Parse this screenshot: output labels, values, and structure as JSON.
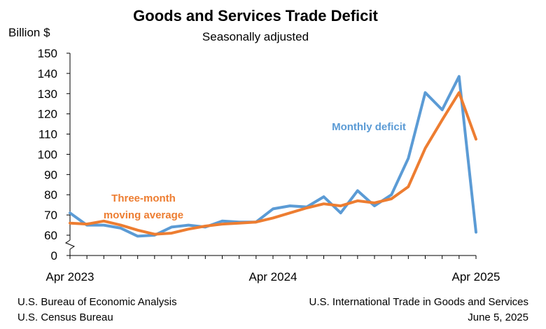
{
  "chart_data": {
    "type": "line",
    "title": "Goods and Services Trade Deficit",
    "subtitle": "Seasonally adjusted",
    "ylabel": "Billion $",
    "ylim": [
      60,
      150
    ],
    "y_ticks": [
      0,
      60,
      70,
      80,
      90,
      100,
      110,
      120,
      130,
      140,
      150
    ],
    "axis_break": true,
    "grid": false,
    "x": [
      "2023-04",
      "2023-05",
      "2023-06",
      "2023-07",
      "2023-08",
      "2023-09",
      "2023-10",
      "2023-11",
      "2023-12",
      "2024-01",
      "2024-02",
      "2024-03",
      "2024-04",
      "2024-05",
      "2024-06",
      "2024-07",
      "2024-08",
      "2024-09",
      "2024-10",
      "2024-11",
      "2024-12",
      "2025-01",
      "2025-02",
      "2025-03",
      "2025-04"
    ],
    "x_tick_labels": [
      "Apr 2023",
      "Apr 2024",
      "Apr 2025"
    ],
    "series": [
      {
        "name": "Monthly deficit",
        "color": "#5B9BD5",
        "values": [
          71,
          65,
          65,
          63.5,
          59.5,
          60,
          64,
          65,
          64,
          67,
          66.5,
          66.5,
          73,
          74.5,
          74,
          79,
          71,
          82,
          74.5,
          80,
          98,
          130.5,
          122,
          138.5,
          61.5
        ]
      },
      {
        "name": "Three-month moving average",
        "label_lines": [
          "Three-month",
          "moving average"
        ],
        "color": "#ED7D31",
        "values": [
          66,
          65.5,
          67,
          65,
          62.5,
          60.5,
          61,
          63,
          64.5,
          65.5,
          66,
          66.5,
          68.5,
          71,
          73.5,
          75.5,
          74.5,
          77,
          76,
          78,
          84,
          103,
          117,
          130.5,
          107.5
        ]
      }
    ]
  },
  "footer": {
    "left_line1": "U.S. Bureau of Economic Analysis",
    "left_line2": "U.S. Census Bureau",
    "right_line1": "U.S. International Trade in Goods and Services",
    "right_line2": "June 5, 2025"
  }
}
